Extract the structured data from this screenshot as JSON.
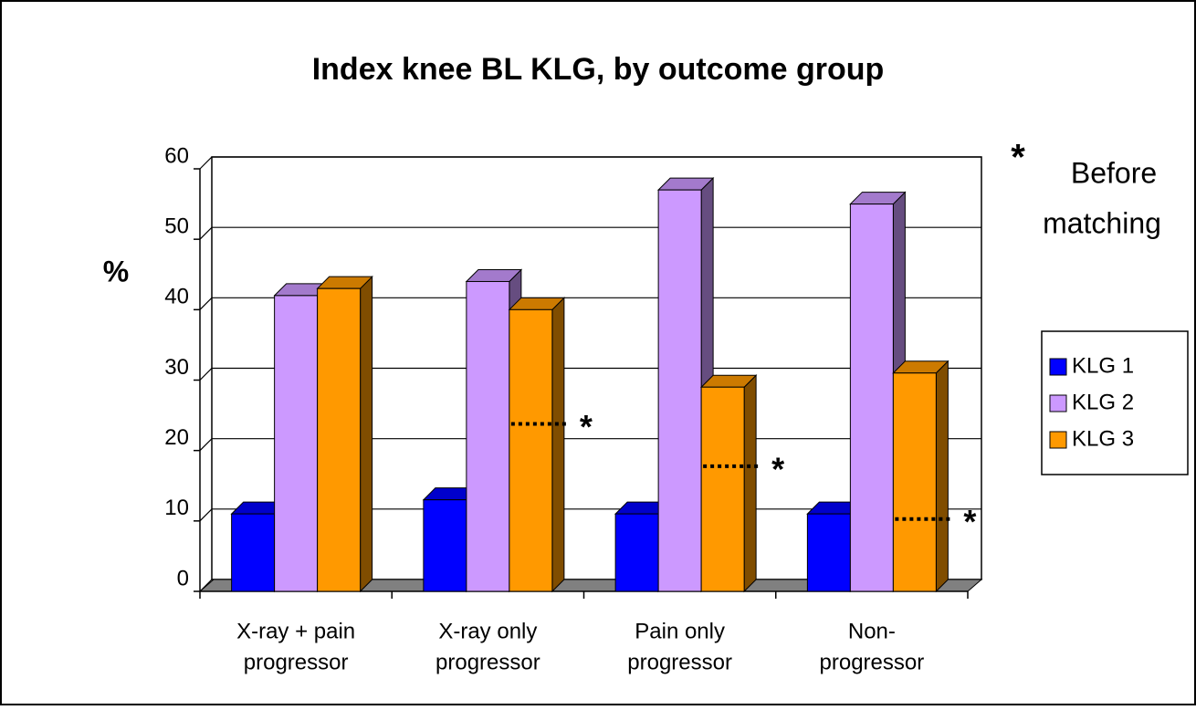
{
  "chart_data": {
    "type": "bar3d",
    "title": "Index knee BL KLG, by outcome group",
    "y_label": "%",
    "categories": [
      [
        "X-ray + pain",
        "progressor"
      ],
      [
        "X-ray only",
        "progressor"
      ],
      [
        "Pain only",
        "progressor"
      ],
      [
        "Non-",
        "progressor"
      ]
    ],
    "series": [
      {
        "name": "KLG 1",
        "color": "#0000ff",
        "values": [
          11,
          13,
          11,
          11
        ]
      },
      {
        "name": "KLG 2",
        "color": "#cc99ff",
        "values": [
          42,
          44,
          57,
          55
        ]
      },
      {
        "name": "KLG 3",
        "color": "#ff9900",
        "values": [
          43,
          40,
          29,
          31
        ]
      }
    ],
    "before_matching": {
      "symbol": "*",
      "label": [
        "Before",
        "matching"
      ],
      "series": "KLG 3",
      "values": [
        null,
        23,
        17,
        9.5
      ]
    },
    "ylim": [
      0,
      60
    ],
    "yticks": [
      0,
      10,
      20,
      30,
      40,
      50,
      60
    ],
    "grid": true,
    "legend": "right"
  }
}
